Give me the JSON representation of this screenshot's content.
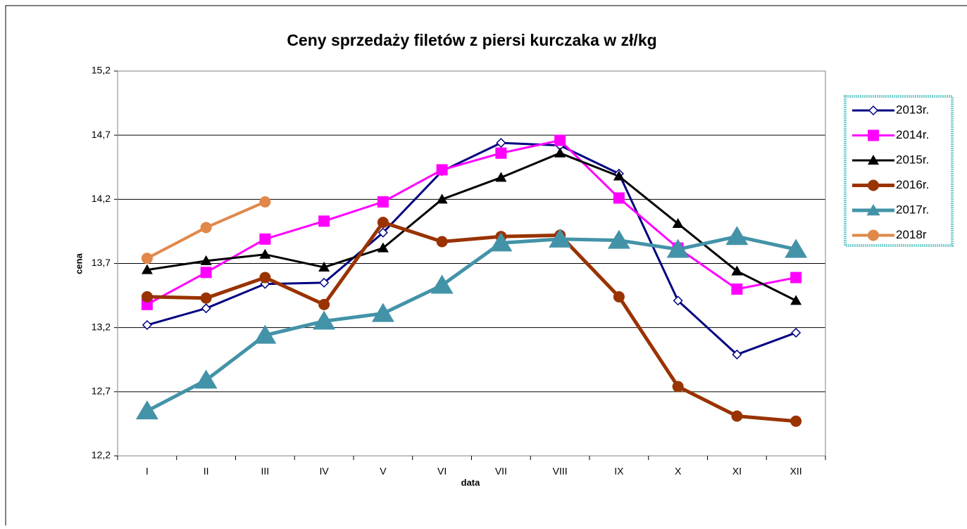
{
  "chart_data": {
    "type": "line",
    "title": "Ceny sprzedaży filetów z piersi kurczaka w zł/kg",
    "x_label": "data",
    "y_label": "cena",
    "categories": [
      "I",
      "II",
      "III",
      "IV",
      "V",
      "VI",
      "VII",
      "VIII",
      "IX",
      "X",
      "XI",
      "XII"
    ],
    "ylim": [
      12.2,
      15.2
    ],
    "yticks": [
      {
        "value": 12.2,
        "label": "12,2"
      },
      {
        "value": 12.7,
        "label": "12,7"
      },
      {
        "value": 13.2,
        "label": "13,2"
      },
      {
        "value": 13.7,
        "label": "13,7"
      },
      {
        "value": 14.2,
        "label": "14,2"
      },
      {
        "value": 14.7,
        "label": "14,7"
      },
      {
        "value": 15.2,
        "label": "15,2"
      }
    ],
    "grid": true,
    "legend": "right",
    "series": [
      {
        "name": "2013r.",
        "color": "#000080",
        "marker": "diamond-open",
        "values": [
          13.22,
          13.35,
          13.54,
          13.55,
          13.94,
          14.42,
          14.64,
          14.62,
          14.4,
          13.41,
          12.99,
          13.16
        ]
      },
      {
        "name": "2014r.",
        "color": "#ff00ff",
        "marker": "square",
        "values": [
          13.38,
          13.63,
          13.89,
          14.03,
          14.18,
          14.43,
          14.56,
          14.66,
          14.21,
          13.82,
          13.5,
          13.59
        ]
      },
      {
        "name": "2015r.",
        "color": "#000000",
        "marker": "triangle",
        "values": [
          13.65,
          13.72,
          13.77,
          13.67,
          13.82,
          14.2,
          14.37,
          14.56,
          14.38,
          14.01,
          13.64,
          13.41
        ]
      },
      {
        "name": "2016r.",
        "color": "#993300",
        "marker": "circle",
        "values": [
          13.44,
          13.43,
          13.59,
          13.38,
          14.02,
          13.87,
          13.91,
          13.92,
          13.44,
          12.74,
          12.51,
          12.47
        ]
      },
      {
        "name": "2017r.",
        "color": "#4393a8",
        "marker": "big-triangle",
        "values": [
          12.55,
          12.79,
          13.14,
          13.25,
          13.31,
          13.53,
          13.86,
          13.89,
          13.88,
          13.81,
          13.91,
          13.81
        ]
      },
      {
        "name": "2018r",
        "color": "#e0884a",
        "marker": "circle",
        "values": [
          13.74,
          13.98,
          14.18,
          null,
          null,
          null,
          null,
          null,
          null,
          null,
          null,
          null
        ]
      }
    ]
  }
}
